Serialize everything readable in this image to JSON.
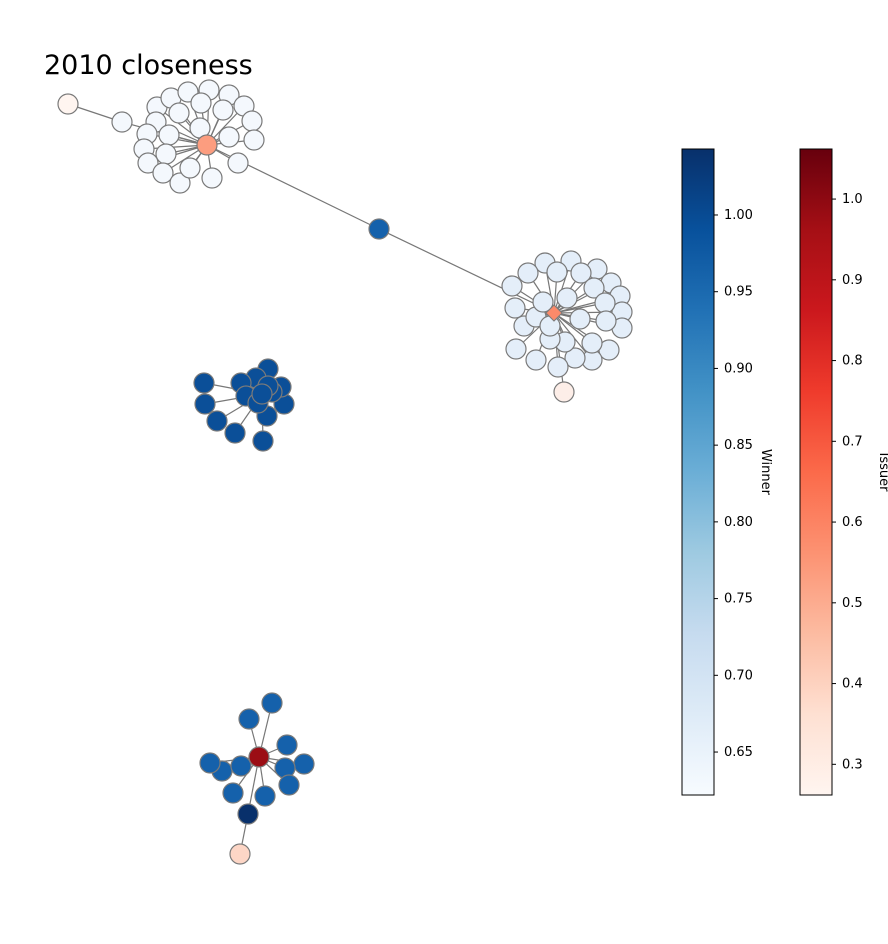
{
  "title": "2010 closeness",
  "colorbars": [
    {
      "label": "Winner",
      "colormap": "Blues",
      "range": [
        0.622,
        1.043
      ],
      "ticks": [
        "0.65",
        "0.70",
        "0.75",
        "0.80",
        "0.85",
        "0.90",
        "0.95",
        "1.00"
      ],
      "tick_values": [
        0.65,
        0.7,
        0.75,
        0.8,
        0.85,
        0.9,
        0.95,
        1.0
      ]
    },
    {
      "label": "Issuer",
      "colormap": "Reds",
      "range": [
        0.262,
        1.062
      ],
      "ticks": [
        "0.3",
        "0.4",
        "0.5",
        "0.6",
        "0.7",
        "0.8",
        "0.9",
        "1.0"
      ],
      "tick_values": [
        0.3,
        0.4,
        0.5,
        0.6,
        0.7,
        0.8,
        0.9,
        1.0
      ]
    }
  ],
  "colors": {
    "edge": "#777777",
    "node_stroke": "#7a7a7a",
    "winner_high": "#08306b",
    "winner_mid": "#1561ab",
    "winner_low": "#f7fbff",
    "issuer_high": "#9b0d14",
    "issuer_mid": "#fc9d7f",
    "issuer_low": "#fff5f0"
  }
}
